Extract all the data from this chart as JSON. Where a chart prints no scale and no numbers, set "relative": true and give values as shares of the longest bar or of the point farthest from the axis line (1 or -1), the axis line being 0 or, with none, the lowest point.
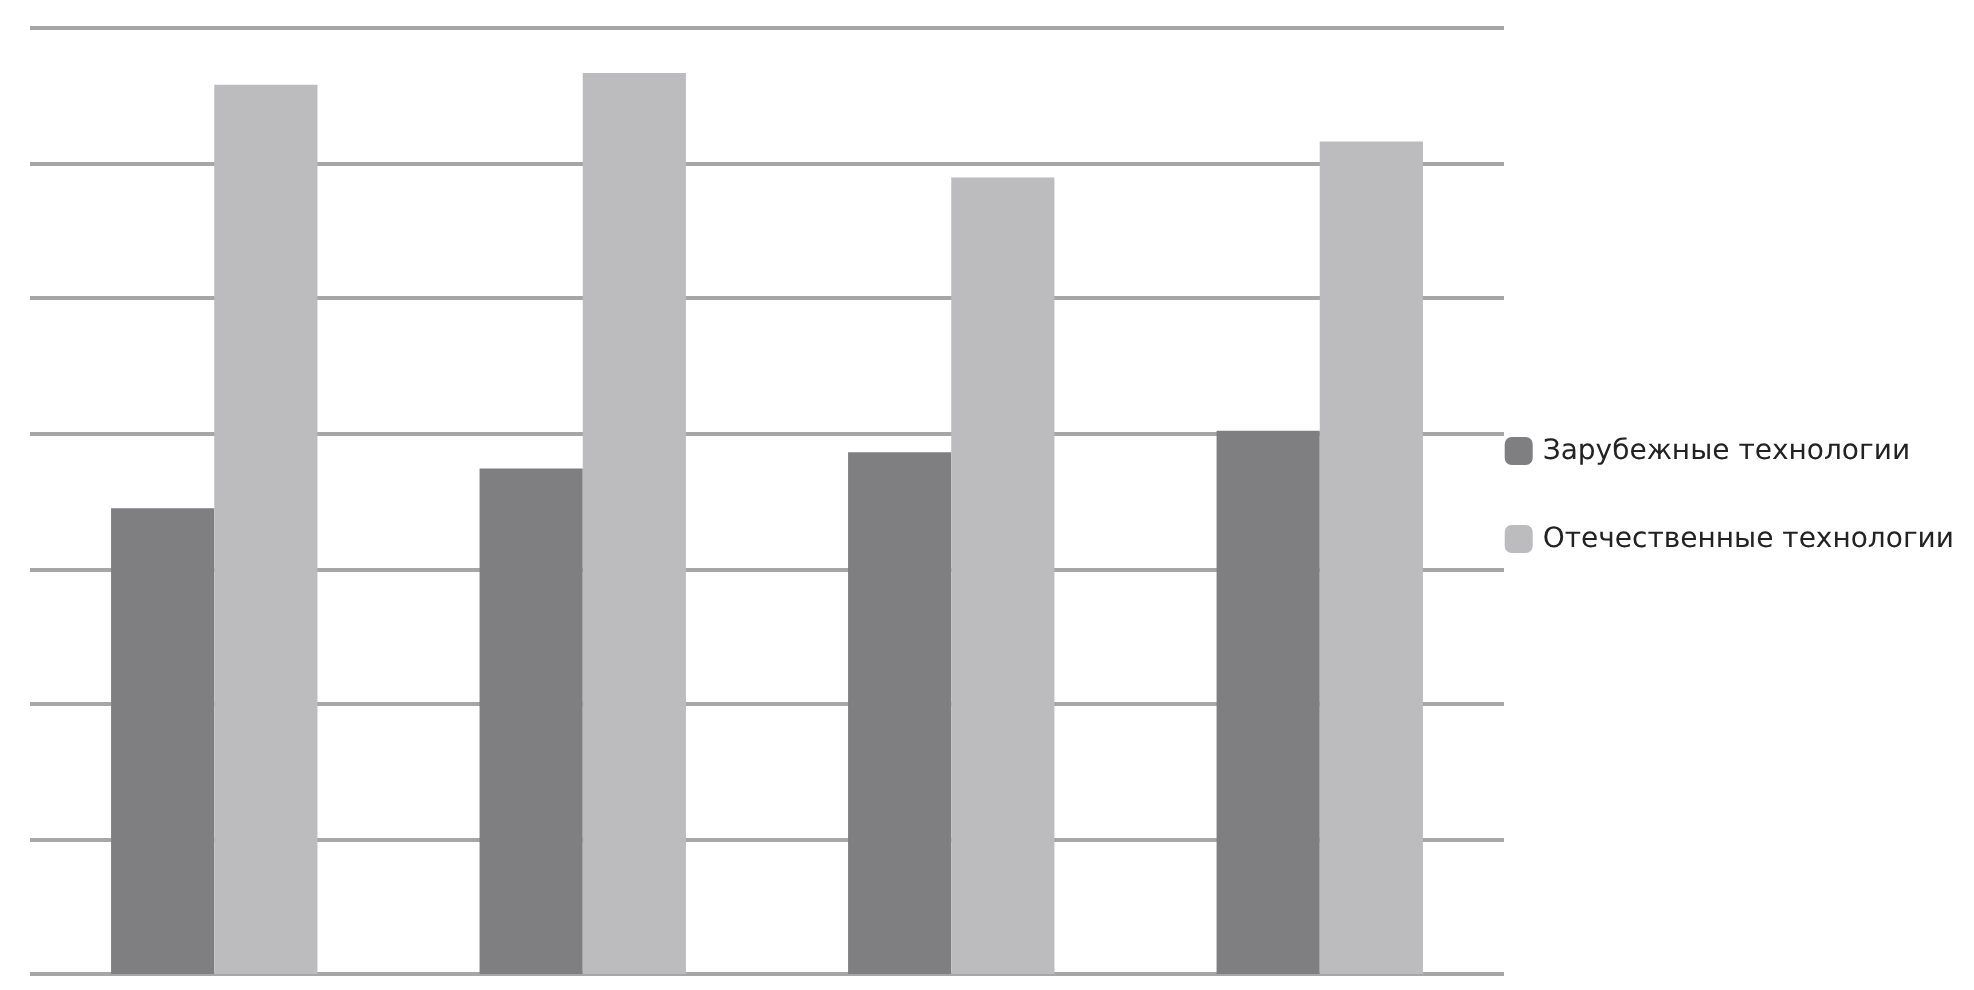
{
  "chart_data": {
    "type": "bar",
    "relative": true,
    "categories": [
      null,
      null,
      null,
      null
    ],
    "series": [
      {
        "name": "Зарубежные технологии",
        "color": "#7f7f81",
        "values": [
          0.517,
          0.561,
          0.579,
          0.603
        ]
      },
      {
        "name": "Отечественные технологии",
        "color": "#bcbcbe",
        "values": [
          0.987,
          1,
          0.884,
          0.924
        ]
      }
    ],
    "grid": "y",
    "legend": "right"
  }
}
